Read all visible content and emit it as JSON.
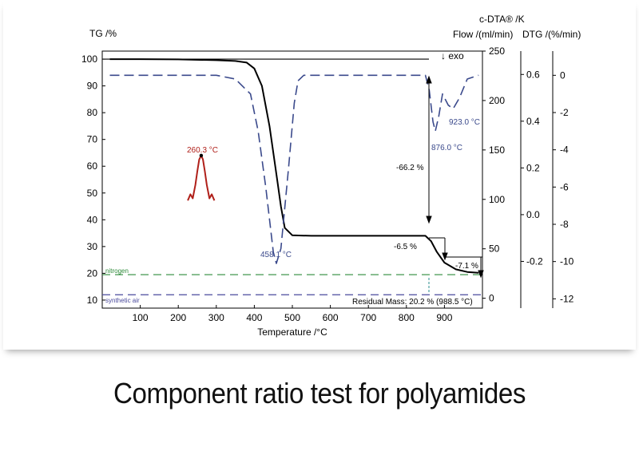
{
  "caption": "Component ratio test for polyamides",
  "chart_data": {
    "type": "line",
    "xlabel": "Temperature /°C",
    "xlim": [
      0,
      1000
    ],
    "x_ticks": [
      100,
      200,
      300,
      400,
      500,
      600,
      700,
      800,
      900
    ],
    "axes": {
      "tg": {
        "label": "TG /%",
        "ylim": [
          7,
          103
        ],
        "ticks": [
          10,
          20,
          30,
          40,
          50,
          60,
          70,
          80,
          90,
          100
        ]
      },
      "dta": {
        "label": "c-DTA® /K",
        "ylim": [
          -10,
          250
        ],
        "ticks": [
          0,
          50,
          100,
          150,
          200,
          250
        ]
      },
      "flow": {
        "label": "Flow /(ml/min)",
        "ylim": [
          -0.4,
          0.7
        ],
        "ticks": [
          0.6,
          0.4,
          0.2,
          0.0,
          -0.2
        ]
      },
      "dtg": {
        "label": "DTG /(%/min)",
        "ylim": [
          -12.5,
          1.3
        ],
        "ticks": [
          0,
          -2,
          -4,
          -6,
          -8,
          -10,
          -12
        ]
      }
    },
    "exo_label": "↓ exo",
    "series": [
      {
        "color": "#000000",
        "style": "solid",
        "axis": "tg",
        "x": [
          20,
          100,
          200,
          300,
          350,
          380,
          400,
          420,
          440,
          460,
          470,
          480,
          500,
          550,
          600,
          700,
          800,
          850,
          865,
          880,
          900,
          930,
          960,
          990
        ],
        "y": [
          100,
          100,
          99.9,
          99.6,
          99.3,
          98.7,
          96.5,
          90,
          75,
          55,
          45,
          37,
          34.2,
          34,
          34,
          34,
          34,
          34,
          32,
          28,
          24,
          21.5,
          20.5,
          20.2
        ]
      },
      {
        "color": "#3b4a8c",
        "style": "dashed",
        "axis": "dtg",
        "x": [
          20,
          200,
          300,
          350,
          390,
          410,
          430,
          450,
          458,
          470,
          490,
          505,
          515,
          530,
          600,
          700,
          800,
          850,
          860,
          870,
          876,
          885,
          895,
          910,
          923,
          940,
          960,
          990
        ],
        "y": [
          0,
          0,
          0,
          -0.2,
          -1,
          -3,
          -6,
          -9.5,
          -10.1,
          -9.3,
          -5,
          -1.5,
          -0.3,
          0,
          0,
          0,
          0,
          0,
          -0.8,
          -2.5,
          -3,
          -2.2,
          -1,
          -1.6,
          -1.8,
          -1.2,
          -0.2,
          0
        ]
      },
      {
        "color": "#b0201a",
        "style": "solid",
        "axis": "tg",
        "x": [
          225,
          232,
          238,
          245,
          250,
          255,
          260.3,
          265,
          270,
          275,
          282,
          288,
          295
        ],
        "y": [
          47.2,
          49.5,
          48,
          53,
          58,
          62.5,
          64,
          62.5,
          58,
          53,
          48,
          49.5,
          47.2
        ]
      }
    ],
    "gas_lines": [
      {
        "name": "nitrogen",
        "color": "#2e8b3a",
        "tg": 19.5
      },
      {
        "name": "synthetic air",
        "color": "#4a4a9c",
        "tg": 12
      }
    ],
    "annotations": {
      "mass_step_1": "-66.2 %",
      "mass_step_2": "-6.5 %",
      "mass_step_3": "-7.1 %",
      "peak_dtg_1": "458.1 °C",
      "peak_dtg_2": "876.0 °C",
      "peak_dtg_3": "923.0 °C",
      "peak_dta": "260.3 °C",
      "residual_mass": "Residual Mass: 20.2 % (988.5 °C)"
    },
    "legend": "none",
    "grid": false
  }
}
